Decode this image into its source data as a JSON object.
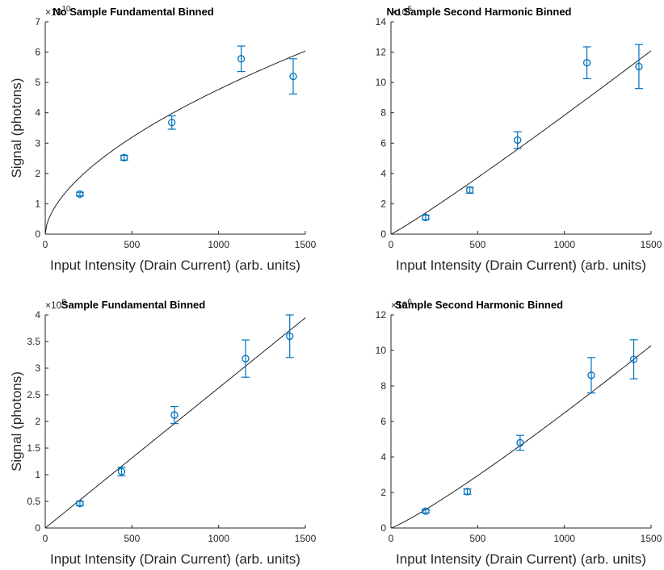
{
  "chart_data": [
    {
      "type": "scatter",
      "title": "No Sample Fundamental Binned",
      "xlabel": "Input Intensity (Drain Current) (arb. units)",
      "ylabel": "Signal (photons)",
      "exponent_base": "×10",
      "exponent": "10",
      "xlim": [
        0,
        1500
      ],
      "ylim": [
        0,
        7
      ],
      "xticks": [
        0,
        500,
        1000,
        1500
      ],
      "yticks": [
        0,
        1,
        2,
        3,
        4,
        5,
        6,
        7
      ],
      "points": [
        {
          "x": 200,
          "y": 1.32,
          "err": 0.06
        },
        {
          "x": 455,
          "y": 2.52,
          "err": 0.08
        },
        {
          "x": 730,
          "y": 3.68,
          "err": 0.22
        },
        {
          "x": 1130,
          "y": 5.78,
          "err": 0.42
        },
        {
          "x": 1430,
          "y": 5.2,
          "err": 0.58
        }
      ],
      "fit": {
        "form": "power",
        "a": 0.0868,
        "p": 0.58
      }
    },
    {
      "type": "scatter",
      "title": "No Sample Second Harmonic Binned",
      "xlabel": "Input Intensity (Drain Current) (arb. units)",
      "ylabel": "",
      "exponent_base": "×10",
      "exponent": "6",
      "xlim": [
        0,
        1500
      ],
      "ylim": [
        0,
        14
      ],
      "xticks": [
        0,
        500,
        1000,
        1500
      ],
      "yticks": [
        0,
        2,
        4,
        6,
        8,
        10,
        12,
        14
      ],
      "points": [
        {
          "x": 200,
          "y": 1.1,
          "err": 0.15
        },
        {
          "x": 455,
          "y": 2.9,
          "err": 0.2
        },
        {
          "x": 730,
          "y": 6.2,
          "err": 0.55
        },
        {
          "x": 1130,
          "y": 11.3,
          "err": 1.05
        },
        {
          "x": 1430,
          "y": 11.05,
          "err": 1.45
        }
      ],
      "fit": {
        "form": "power",
        "a": 0.00483,
        "p": 1.07
      }
    },
    {
      "type": "scatter",
      "title": "Sample Fundamental Binned",
      "xlabel": "Input Intensity (Drain Current) (arb. units)",
      "ylabel": "Signal (photons)",
      "exponent_base": "×10",
      "exponent": "9",
      "xlim": [
        0,
        1500
      ],
      "ylim": [
        0,
        4
      ],
      "xticks": [
        0,
        500,
        1000,
        1500
      ],
      "yticks": [
        0,
        0.5,
        1,
        1.5,
        2,
        2.5,
        3,
        3.5,
        4
      ],
      "points": [
        {
          "x": 200,
          "y": 0.46,
          "err": 0.04
        },
        {
          "x": 440,
          "y": 1.06,
          "err": 0.08
        },
        {
          "x": 745,
          "y": 2.12,
          "err": 0.16
        },
        {
          "x": 1155,
          "y": 3.18,
          "err": 0.35
        },
        {
          "x": 1410,
          "y": 3.6,
          "err": 0.4
        }
      ],
      "fit": {
        "form": "power",
        "a": 0.00263,
        "p": 1.0
      }
    },
    {
      "type": "scatter",
      "title": "Sample Second Harmonic Binned",
      "xlabel": "Input Intensity (Drain Current) (arb. units)",
      "ylabel": "",
      "exponent_base": "×10",
      "exponent": "6",
      "xlim": [
        0,
        1500
      ],
      "ylim": [
        0,
        12
      ],
      "xticks": [
        0,
        500,
        1000,
        1500
      ],
      "yticks": [
        0,
        2,
        4,
        6,
        8,
        10,
        12
      ],
      "points": [
        {
          "x": 200,
          "y": 0.95,
          "err": 0.1
        },
        {
          "x": 440,
          "y": 2.05,
          "err": 0.15
        },
        {
          "x": 745,
          "y": 4.8,
          "err": 0.42
        },
        {
          "x": 1155,
          "y": 8.6,
          "err": 1.0
        },
        {
          "x": 1400,
          "y": 9.5,
          "err": 1.1
        }
      ],
      "fit": {
        "form": "power",
        "a": 0.00255,
        "p": 1.135
      }
    }
  ]
}
